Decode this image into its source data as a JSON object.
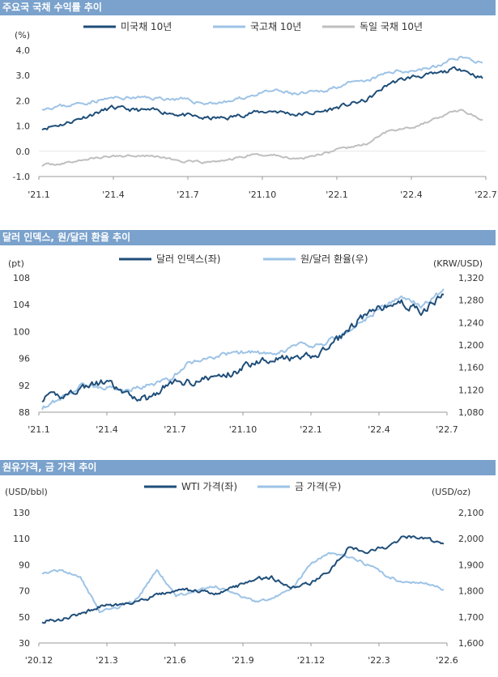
{
  "colors": {
    "title_bg": "#7aa2cc",
    "dark": "#1f4e79",
    "light": "#9dc3e6",
    "gray": "#bfbfbf",
    "axis": "#9a9a9a"
  },
  "chart_data": [
    {
      "type": "line",
      "title": "주요국 국채 수익률 추이",
      "ylabel_left": "(%)",
      "ylim": [
        -1.0,
        4.0
      ],
      "y_ticks": [
        "4.0",
        "3.0",
        "2.0",
        "1.0",
        "0.0",
        "-1.0"
      ],
      "y_tick_values": [
        4.0,
        3.0,
        2.0,
        1.0,
        0.0,
        -1.0
      ],
      "x_ticks": [
        "'21.1",
        "'21.4",
        "'21.7",
        "'21.10",
        "'22.1",
        "'22.4",
        "'22.7"
      ],
      "x_range": [
        "2021-01",
        "2022-07"
      ],
      "legend": [
        "미국채 10년",
        "국고채 10년",
        "독일 국채 10년"
      ],
      "series": [
        {
          "name": "미국채 10년",
          "color": "#1f4e79",
          "axis": "left",
          "values": [
            0.92,
            1.1,
            1.42,
            1.72,
            1.63,
            1.6,
            1.45,
            1.3,
            1.32,
            1.52,
            1.6,
            1.45,
            1.55,
            1.8,
            2.02,
            2.7,
            2.95,
            3.05,
            3.3,
            2.88
          ]
        },
        {
          "name": "국고채 10년",
          "color": "#9dc3e6",
          "axis": "left",
          "values": [
            1.72,
            1.8,
            1.95,
            2.1,
            2.12,
            2.1,
            2.05,
            1.9,
            1.95,
            2.2,
            2.4,
            2.25,
            2.35,
            2.65,
            2.75,
            3.15,
            3.2,
            3.35,
            3.75,
            3.5
          ]
        },
        {
          "name": "독일 국채 10년",
          "color": "#bfbfbf",
          "axis": "left",
          "values": [
            -0.55,
            -0.47,
            -0.3,
            -0.2,
            -0.15,
            -0.2,
            -0.4,
            -0.45,
            -0.35,
            -0.15,
            -0.15,
            -0.3,
            -0.1,
            0.1,
            0.3,
            0.85,
            0.95,
            1.3,
            1.65,
            1.25
          ]
        }
      ]
    },
    {
      "type": "line",
      "title": "달러 인덱스, 원/달러 환율 추이",
      "ylabel_left": "(pt)",
      "ylabel_right": "(KRW/USD)",
      "ylim_left": [
        88,
        108
      ],
      "ylim_right": [
        1080,
        1320
      ],
      "y_ticks_left": [
        "108",
        "104",
        "100",
        "96",
        "92",
        "88"
      ],
      "y_tick_values_left": [
        108,
        104,
        100,
        96,
        92,
        88
      ],
      "y_ticks_right": [
        "1,320",
        "1,280",
        "1,240",
        "1,200",
        "1,160",
        "1,120",
        "1,080"
      ],
      "y_tick_values_right": [
        1320,
        1280,
        1240,
        1200,
        1160,
        1120,
        1080
      ],
      "x_ticks": [
        "'21.1",
        "'21.4",
        "'21.7",
        "'21.10",
        "'22.1",
        "'22.4",
        "'22.7"
      ],
      "x_range": [
        "2021-01",
        "2022-07"
      ],
      "legend": [
        "달러 인덱스(좌)",
        "원/달러 환율(우)"
      ],
      "series": [
        {
          "name": "달러 인덱스(좌)",
          "color": "#1f4e79",
          "axis": "left",
          "values": [
            90.0,
            90.5,
            91.8,
            92.5,
            90.5,
            90.0,
            92.3,
            92.6,
            93.1,
            93.8,
            95.5,
            96.2,
            95.8,
            96.5,
            98.8,
            101.8,
            103.5,
            104.3,
            103.0,
            105.5
          ]
        },
        {
          "name": "원/달러 환율(우)",
          "color": "#9dc3e6",
          "axis": "right",
          "values": [
            1088,
            1108,
            1130,
            1125,
            1118,
            1128,
            1138,
            1170,
            1178,
            1185,
            1188,
            1180,
            1200,
            1198,
            1215,
            1238,
            1265,
            1285,
            1270,
            1300
          ]
        }
      ]
    },
    {
      "type": "line",
      "title": "원유가격, 금 가격 추이",
      "ylabel_left": "(USD/bbl)",
      "ylabel_right": "(USD/oz)",
      "ylim_left": [
        30,
        130
      ],
      "ylim_right": [
        1600,
        2100
      ],
      "y_ticks_left": [
        "130",
        "110",
        "90",
        "70",
        "50",
        "30"
      ],
      "y_tick_values_left": [
        130,
        110,
        90,
        70,
        50,
        30
      ],
      "y_ticks_right": [
        "2,100",
        "2,000",
        "1,900",
        "1,800",
        "1,700",
        "1,600"
      ],
      "y_tick_values_right": [
        2100,
        2000,
        1900,
        1800,
        1700,
        1600
      ],
      "x_ticks": [
        "'20.12",
        "'21.3",
        "'21.6",
        "'21.9",
        "'21.12",
        "'22.3",
        "'22.6"
      ],
      "x_range": [
        "2020-12",
        "2022-06"
      ],
      "legend": [
        "WTI 가격(좌)",
        "금 가격(우)"
      ],
      "series": [
        {
          "name": "WTI 가격(좌)",
          "color": "#1f4e79",
          "axis": "left",
          "values": [
            47,
            48,
            52,
            58,
            59,
            62,
            66,
            71,
            70,
            68,
            72,
            78,
            81,
            72,
            76,
            85,
            103,
            100,
            104,
            112,
            110,
            106
          ]
        },
        {
          "name": "금 가격(우)",
          "color": "#9dc3e6",
          "axis": "right",
          "values": [
            1870,
            1880,
            1850,
            1720,
            1735,
            1770,
            1880,
            1780,
            1800,
            1820,
            1790,
            1760,
            1770,
            1800,
            1900,
            1945,
            1930,
            1900,
            1860,
            1830,
            1830,
            1805
          ]
        }
      ]
    }
  ]
}
